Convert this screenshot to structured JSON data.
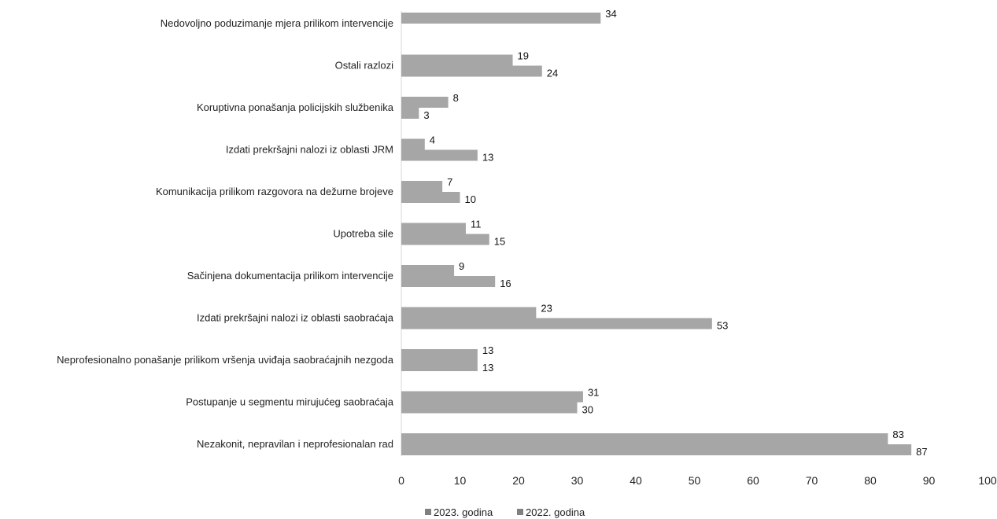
{
  "chart_data": {
    "type": "bar",
    "orientation": "horizontal",
    "categories": [
      "Nedovoljno poduzimanje mjera prilikom intervencije",
      "Ostali razlozi",
      "Koruptivna ponašanja policijskih službenika",
      "Izdati prekršajni nalozi iz oblasti JRM",
      "Komunikacija prilikom razgovora na dežurne brojeve",
      "Upotreba sile",
      "Sačinjena dokumentacija prilikom intervencije",
      "Izdati prekršajni nalozi iz oblasti saobraćaja",
      "Neprofesionalno ponašanje prilikom vršenja uviđaja saobraćajnih nezgoda",
      "Postupanje u segmentu mirujućeg saobraćaja",
      "Nezakonit, nepravilan i neprofesionalan rad"
    ],
    "series": [
      {
        "name": "2023. godina",
        "color": "#a6a6a6",
        "values": [
          34,
          19,
          8,
          4,
          7,
          11,
          9,
          23,
          13,
          31,
          83
        ]
      },
      {
        "name": "2022. godina",
        "color": "#a6a6a6",
        "values": [
          null,
          24,
          3,
          13,
          10,
          15,
          16,
          53,
          13,
          30,
          87
        ]
      }
    ],
    "x_ticks": [
      "0",
      "10",
      "20",
      "30",
      "40",
      "50",
      "60",
      "70",
      "80",
      "90",
      "100"
    ],
    "xlim": [
      0,
      100
    ],
    "grid": false,
    "legend_position": "bottom"
  }
}
